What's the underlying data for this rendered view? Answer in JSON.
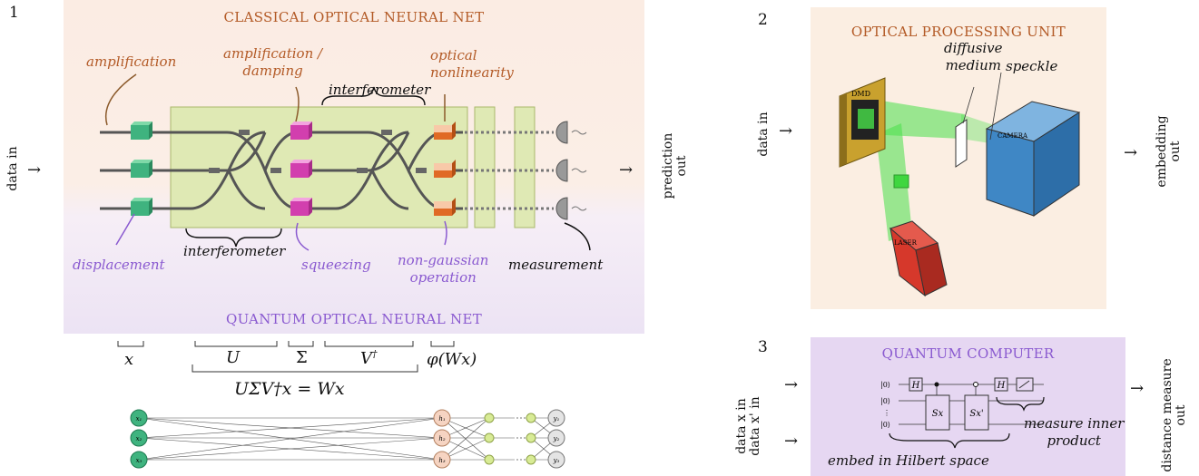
{
  "panel1": {
    "number": "1",
    "classical_title": "CLASSICAL OPTICAL NEURAL NET",
    "quantum_title": "QUANTUM OPTICAL NEURAL NET",
    "input_label": "data in",
    "output_label_line1": "prediction",
    "output_label_line2": "out",
    "labels": {
      "amplification": "amplification",
      "amp_damping_1": "amplification /",
      "amp_damping_2": "damping",
      "interferometer_top": "interferometer",
      "optical_1": "optical",
      "optical_2": "nonlinearity",
      "displacement": "displacement",
      "interferometer_bottom": "interferometer",
      "squeezing": "squeezing",
      "nongauss_1": "non-gaussian",
      "nongauss_2": "operation",
      "measurement": "measurement"
    },
    "math": {
      "x": "x",
      "U": "U",
      "Sigma": "Σ",
      "Vdag": "V",
      "dagger": "†",
      "phi": "φ(Wx)",
      "equation": "UΣV†x = Wx"
    },
    "network": {
      "inputs": [
        "x₁",
        "x₂",
        "x₃"
      ],
      "hidden": [
        "h₁",
        "h₂",
        "h₃"
      ],
      "outputs": [
        "y₁",
        "y₂",
        "y₃"
      ]
    }
  },
  "panel2": {
    "number": "2",
    "title": "OPTICAL PROCESSING UNIT",
    "input_label": "data in",
    "output_line1": "embedding",
    "output_line2": "out",
    "diffusive_1": "diffusive",
    "diffusive_2": "medium",
    "speckle": "speckle",
    "dmd": "DMD",
    "camera": "CAMERA",
    "laser": "LASER"
  },
  "panel3": {
    "number": "3",
    "title": "QUANTUM COMPUTER",
    "input_1": "data x in",
    "input_2": "data x' in",
    "output_line1": "distance measure",
    "output_line2": "out",
    "ket": "|0⟩",
    "gate_H": "H",
    "gate_Sx": "Sx",
    "gate_Sxp": "Sx'",
    "measure_1": "measure inner",
    "measure_2": "product",
    "embed": "embed in Hilbert space"
  },
  "colors": {
    "orange_text": "#b35a26",
    "purple_text": "#8a5ad0",
    "classical_bg": "#fbeee4",
    "quantum_bg": "#efe6f7",
    "interferometer_box": "#dfe9b4",
    "green_block": "#3fb37f",
    "pink_block": "#d23fae",
    "orange_block": "#e06a25",
    "panel2_bg": "#fbeee2",
    "panel3_bg": "#e6d7f2"
  }
}
